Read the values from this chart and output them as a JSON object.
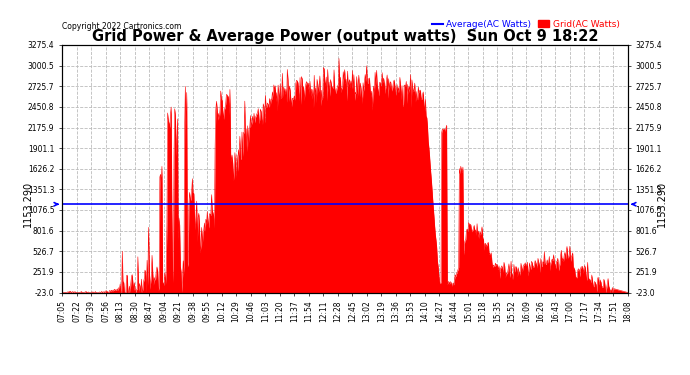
{
  "title": "Grid Power & Average Power (output watts)  Sun Oct 9 18:22",
  "copyright": "Copyright 2022 Cartronics.com",
  "legend_avg": "Average(AC Watts)",
  "legend_grid": "Grid(AC Watts)",
  "avg_value": 1153.29,
  "ymin": -23.0,
  "ymax": 3275.4,
  "yticks": [
    3275.4,
    3000.5,
    2725.7,
    2450.8,
    2175.9,
    1901.1,
    1626.2,
    1351.3,
    1076.5,
    801.6,
    526.7,
    251.9,
    -23.0
  ],
  "bg_color": "#ffffff",
  "fill_color": "#ff0000",
  "avg_line_color": "#0000ff",
  "grid_color": "#bbbbbb",
  "xtick_labels": [
    "07:05",
    "07:22",
    "07:39",
    "07:56",
    "08:13",
    "08:30",
    "08:47",
    "09:04",
    "09:21",
    "09:38",
    "09:55",
    "10:12",
    "10:29",
    "10:46",
    "11:03",
    "11:20",
    "11:37",
    "11:54",
    "12:11",
    "12:28",
    "12:45",
    "13:02",
    "13:19",
    "13:36",
    "13:53",
    "14:10",
    "14:27",
    "14:44",
    "15:01",
    "15:18",
    "15:35",
    "15:52",
    "16:09",
    "16:26",
    "16:43",
    "17:00",
    "17:17",
    "17:34",
    "17:51",
    "18:08"
  ],
  "label_fontsize": 5.5,
  "title_fontsize": 10.5,
  "annotation_fontsize": 7.0,
  "avg_annotation": "1153.290",
  "base_profile": [
    -23,
    -23,
    -23,
    -23,
    30,
    80,
    130,
    200,
    350,
    550,
    900,
    1400,
    1800,
    2200,
    2450,
    2600,
    2650,
    2700,
    2750,
    2800,
    2750,
    2700,
    2700,
    2700,
    2650,
    2600,
    100,
    100,
    850,
    750,
    250,
    250,
    300,
    380,
    350,
    300,
    200,
    100,
    30,
    -23
  ]
}
